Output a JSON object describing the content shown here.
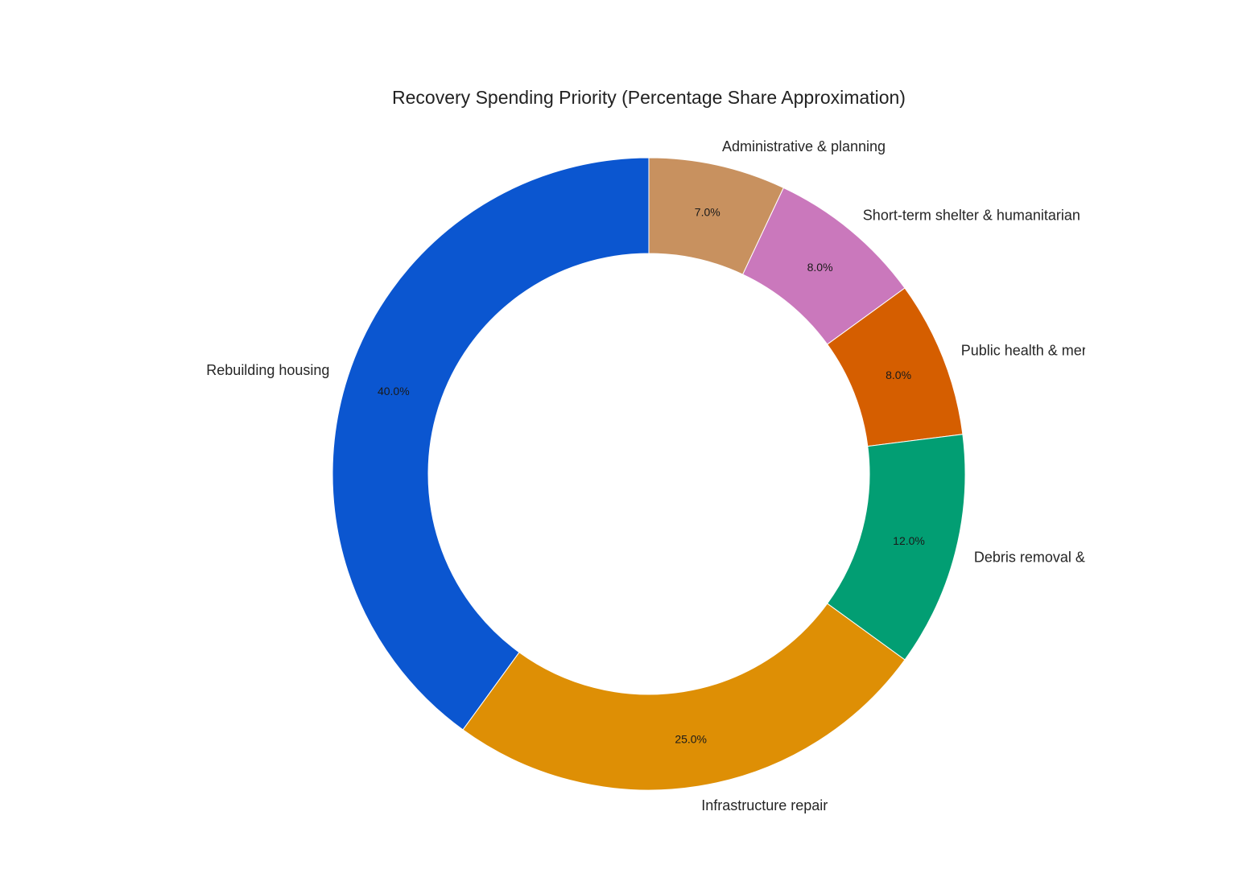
{
  "chart_data": {
    "type": "pie",
    "style": "donut",
    "title": "Recovery Spending Priority (Percentage Share Approximation)",
    "start_angle": "top, clockwise",
    "slices": [
      {
        "label": "Administrative & planning",
        "value": 7.0,
        "pct_label": "7.0%",
        "color": "#C8915F"
      },
      {
        "label": "Short-term shelter & humanitarian",
        "value": 8.0,
        "pct_label": "8.0%",
        "color": "#CA78BC"
      },
      {
        "label": "Public health & mer",
        "value": 8.0,
        "pct_label": "8.0%",
        "color": "#D55E00"
      },
      {
        "label": "Debris removal &",
        "value": 12.0,
        "pct_label": "12.0%",
        "color": "#029E73"
      },
      {
        "label": "Infrastructure repair",
        "value": 25.0,
        "pct_label": "25.0%",
        "color": "#DE8F05"
      },
      {
        "label": "Rebuilding housing",
        "value": 40.0,
        "pct_label": "40.0%",
        "color": "#0B56D0"
      }
    ]
  }
}
